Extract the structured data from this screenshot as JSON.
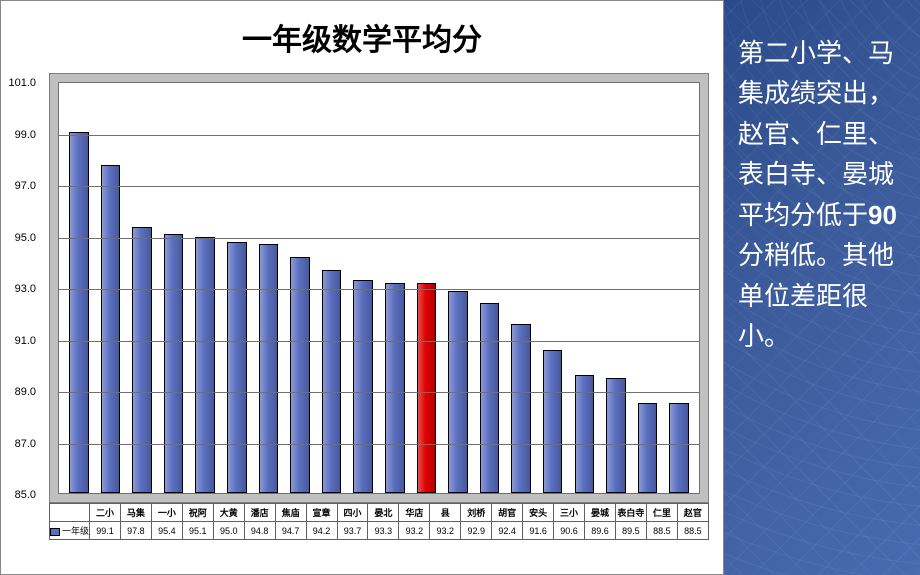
{
  "title": "一年级数学平均分",
  "side_text_parts": {
    "p1": "第二小学、马集成绩突出，赵官、仁里、表白寺、晏城平均分低于",
    "num": "90",
    "p2": "分稍低。其他单位差距很小。"
  },
  "legend_label": "一年级",
  "chart": {
    "type": "bar",
    "ylim": [
      85.0,
      101.0
    ],
    "ytick_step": 2.0,
    "background_color": "#ffffff",
    "plot_area_color": "#c0c0c0",
    "grid_color": "#707070",
    "bar_default_color": "#5a6fc0",
    "bar_highlight_color": "#e00000",
    "axis_label_fontsize": 11,
    "categories": [
      "二小",
      "马集",
      "一小",
      "祝阿",
      "大黄",
      "潘店",
      "焦庙",
      "宣章",
      "四小",
      "晏北",
      "华店",
      "县",
      "刘桥",
      "胡官",
      "安头",
      "三小",
      "晏城",
      "表白寺",
      "仁里",
      "赵官"
    ],
    "values": [
      99.1,
      97.8,
      95.4,
      95.1,
      95.0,
      94.8,
      94.7,
      94.2,
      93.7,
      93.3,
      93.2,
      93.2,
      92.9,
      92.4,
      91.6,
      90.6,
      89.6,
      89.5,
      88.5,
      88.5
    ],
    "highlight_index": 11
  }
}
